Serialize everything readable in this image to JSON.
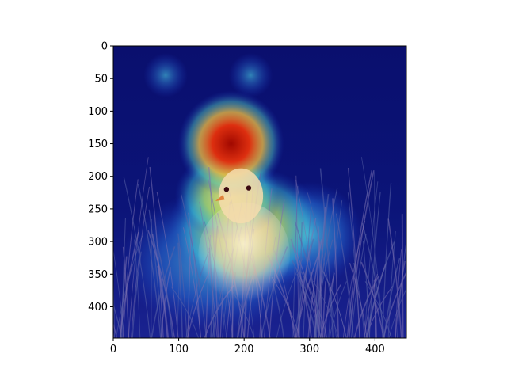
{
  "chart_data": {
    "type": "heatmap",
    "title": "",
    "xlabel": "",
    "ylabel": "",
    "xlim": [
      0,
      448
    ],
    "ylim": [
      448,
      0
    ],
    "x_ticks": [
      0,
      100,
      200,
      300,
      400
    ],
    "y_ticks": [
      0,
      50,
      100,
      150,
      200,
      250,
      300,
      350,
      400
    ],
    "y_axis_inverted": true,
    "colormap": "jet",
    "overlay": "saliency heatmap over photograph of a white duckling sitting in dark grass",
    "grid": false,
    "legend": "none",
    "colors": {
      "background_low": "#0a0f6e",
      "hot_core": "#b81a08",
      "warm": "#f4c24a",
      "mid": "#53d0c8",
      "bird": "#f0e6c8",
      "grass": "#3a3f7a"
    },
    "hotspots": [
      {
        "x": 180,
        "y": 150,
        "intensity": 1.0,
        "rx": 60,
        "ry": 60
      },
      {
        "x": 175,
        "y": 230,
        "intensity": 0.85,
        "rx": 60,
        "ry": 50
      },
      {
        "x": 205,
        "y": 280,
        "intensity": 0.7,
        "rx": 90,
        "ry": 70
      },
      {
        "x": 160,
        "y": 330,
        "intensity": 0.55,
        "rx": 110,
        "ry": 80
      },
      {
        "x": 300,
        "y": 290,
        "intensity": 0.5,
        "rx": 60,
        "ry": 60
      },
      {
        "x": 80,
        "y": 45,
        "intensity": 0.35,
        "rx": 25,
        "ry": 25
      },
      {
        "x": 210,
        "y": 45,
        "intensity": 0.35,
        "rx": 25,
        "ry": 25
      }
    ]
  }
}
